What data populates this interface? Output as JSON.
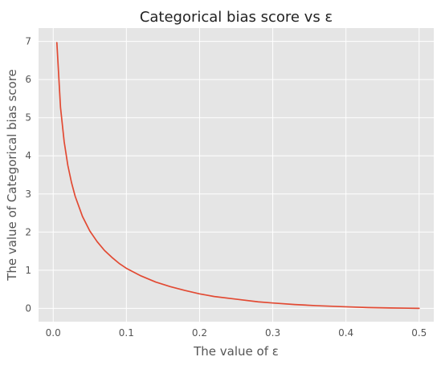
{
  "chart_data": {
    "type": "line",
    "title": "Categorical bias score vs ε",
    "xlabel": "The value of ε",
    "ylabel": "The value of Categorical bias score",
    "xlim": [
      -0.02,
      0.52
    ],
    "ylim": [
      -0.35,
      7.35
    ],
    "xticks": [
      0.0,
      0.1,
      0.2,
      0.3,
      0.4,
      0.5
    ],
    "xtick_labels": [
      "0.0",
      "0.1",
      "0.2",
      "0.3",
      "0.4",
      "0.5"
    ],
    "yticks": [
      0,
      1,
      2,
      3,
      4,
      5,
      6,
      7
    ],
    "ytick_labels": [
      "0",
      "1",
      "2",
      "3",
      "4",
      "5",
      "6",
      "7"
    ],
    "grid": true,
    "series": [
      {
        "color": "#E24A33",
        "x": [
          0.005,
          0.01,
          0.015,
          0.02,
          0.025,
          0.03,
          0.04,
          0.05,
          0.06,
          0.07,
          0.08,
          0.09,
          0.1,
          0.12,
          0.14,
          0.16,
          0.18,
          0.2,
          0.22,
          0.25,
          0.28,
          0.3,
          0.33,
          0.36,
          0.4,
          0.43,
          0.46,
          0.5
        ],
        "y": [
          6.97,
          5.27,
          4.37,
          3.75,
          3.3,
          2.94,
          2.41,
          2.03,
          1.75,
          1.52,
          1.34,
          1.18,
          1.05,
          0.85,
          0.69,
          0.57,
          0.47,
          0.38,
          0.31,
          0.24,
          0.17,
          0.14,
          0.1,
          0.07,
          0.04,
          0.02,
          0.01,
          0.0
        ]
      }
    ]
  }
}
